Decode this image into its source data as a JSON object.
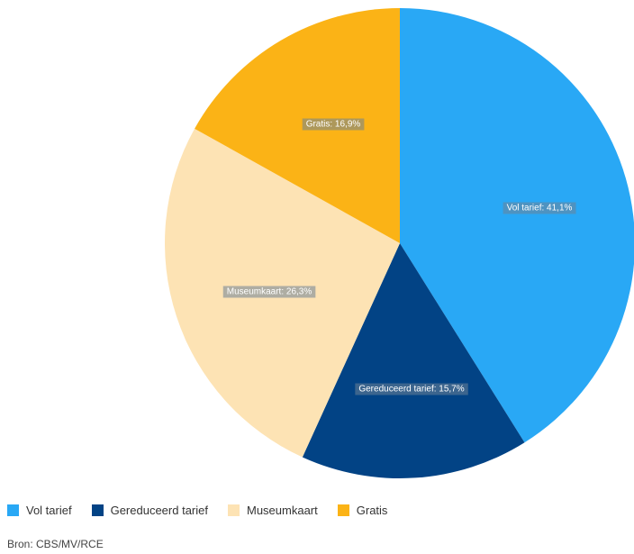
{
  "chart_data": {
    "type": "pie",
    "slices": [
      {
        "name": "Vol tarief",
        "value": 41.1,
        "label": "Vol tarief: 41,1%",
        "color": "#29a8f5"
      },
      {
        "name": "Gereduceerd tarief",
        "value": 15.7,
        "label": "Gereduceerd tarief: 15,7%",
        "color": "#024385"
      },
      {
        "name": "Museumkaart",
        "value": 26.3,
        "label": "Museumkaart: 26,3%",
        "color": "#fde3b4"
      },
      {
        "name": "Gratis",
        "value": 16.9,
        "label": "Gratis: 16,9%",
        "color": "#fbb316"
      }
    ],
    "start_angle": "12 o'clock",
    "direction": "clockwise",
    "legend_position": "bottom-left"
  },
  "legend": {
    "items": [
      {
        "label": "Vol tarief",
        "color": "#29a8f5"
      },
      {
        "label": "Gereduceerd tarief",
        "color": "#024385"
      },
      {
        "label": "Museumkaart",
        "color": "#fde3b4"
      },
      {
        "label": "Gratis",
        "color": "#fbb316"
      }
    ]
  },
  "source": "Bron: CBS/MV/RCE"
}
